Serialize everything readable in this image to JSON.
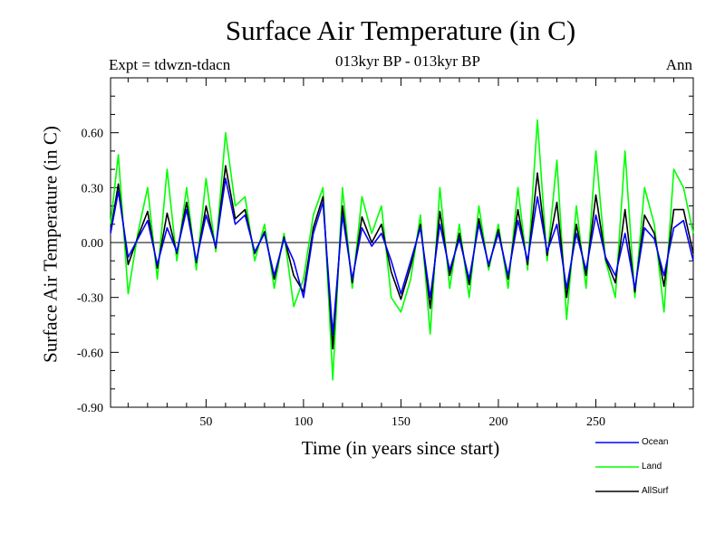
{
  "chart_data": {
    "type": "line",
    "title": "Surface Air Temperature (in C)",
    "subtitle": "013kyr BP - 013kyr BP",
    "experiment_label": "Expt = tdwzn-tdacn",
    "season_label": "Ann",
    "xlabel": "Time (in years since start)",
    "ylabel": "Surface Air Temperature (in C)",
    "xlim": [
      1,
      300
    ],
    "ylim": [
      -0.9,
      0.9
    ],
    "xticks": [
      50,
      100,
      150,
      200,
      250
    ],
    "xtick_labels": [
      "50",
      "100",
      "150",
      "200",
      "250"
    ],
    "yticks": [
      0.6,
      0.3,
      0.0,
      -0.3,
      -0.6,
      -0.9
    ],
    "ytick_labels": [
      "0.60",
      "0.30",
      "0.00",
      "-0.30",
      "-0.60",
      "-0.90"
    ],
    "grid": false,
    "zero_line": true,
    "legend_position": "bottom-right, below plot",
    "series": [
      {
        "name": "Ocean",
        "color": "#0000ff",
        "x": [
          1,
          5,
          10,
          15,
          20,
          25,
          30,
          35,
          40,
          45,
          50,
          55,
          60,
          65,
          70,
          75,
          80,
          85,
          90,
          95,
          100,
          105,
          110,
          115,
          120,
          125,
          130,
          135,
          140,
          145,
          150,
          155,
          160,
          165,
          170,
          175,
          180,
          185,
          190,
          195,
          200,
          205,
          210,
          215,
          220,
          225,
          230,
          235,
          240,
          245,
          250,
          255,
          260,
          265,
          270,
          275,
          280,
          285,
          290,
          295,
          300
        ],
        "values": [
          0.05,
          0.28,
          -0.08,
          0.02,
          0.12,
          -0.12,
          0.08,
          -0.05,
          0.18,
          -0.1,
          0.15,
          -0.02,
          0.35,
          0.1,
          0.15,
          -0.05,
          0.05,
          -0.18,
          0.02,
          -0.1,
          -0.3,
          0.05,
          0.22,
          -0.5,
          0.15,
          -0.2,
          0.08,
          -0.02,
          0.05,
          -0.1,
          -0.28,
          -0.1,
          0.08,
          -0.3,
          0.1,
          -0.15,
          0.02,
          -0.2,
          0.1,
          -0.12,
          0.05,
          -0.18,
          0.12,
          -0.1,
          0.25,
          -0.05,
          0.1,
          -0.25,
          0.05,
          -0.15,
          0.15,
          -0.08,
          -0.18,
          0.05,
          -0.25,
          0.08,
          0.02,
          -0.18,
          0.08,
          0.12,
          -0.1
        ]
      },
      {
        "name": "Land",
        "color": "#00ff00",
        "x": [
          1,
          5,
          10,
          15,
          20,
          25,
          30,
          35,
          40,
          45,
          50,
          55,
          60,
          65,
          70,
          75,
          80,
          85,
          90,
          95,
          100,
          105,
          110,
          115,
          120,
          125,
          130,
          135,
          140,
          145,
          150,
          155,
          160,
          165,
          170,
          175,
          180,
          185,
          190,
          195,
          200,
          205,
          210,
          215,
          220,
          225,
          230,
          235,
          240,
          245,
          250,
          255,
          260,
          265,
          270,
          275,
          280,
          285,
          290,
          295,
          300
        ],
        "values": [
          0.1,
          0.48,
          -0.28,
          0.05,
          0.3,
          -0.2,
          0.4,
          -0.1,
          0.3,
          -0.15,
          0.35,
          -0.05,
          0.6,
          0.2,
          0.25,
          -0.1,
          0.1,
          -0.25,
          0.05,
          -0.35,
          -0.2,
          0.15,
          0.3,
          -0.75,
          0.3,
          -0.25,
          0.25,
          0.05,
          0.2,
          -0.3,
          -0.38,
          -0.2,
          0.15,
          -0.5,
          0.3,
          -0.25,
          0.1,
          -0.3,
          0.2,
          -0.15,
          0.1,
          -0.25,
          0.3,
          -0.15,
          0.67,
          -0.1,
          0.45,
          -0.42,
          0.2,
          -0.25,
          0.5,
          -0.1,
          -0.3,
          0.5,
          -0.3,
          0.3,
          0.1,
          -0.38,
          0.4,
          0.3,
          0.05
        ]
      },
      {
        "name": "AllSurf",
        "color": "#000000",
        "x": [
          1,
          5,
          10,
          15,
          20,
          25,
          30,
          35,
          40,
          45,
          50,
          55,
          60,
          65,
          70,
          75,
          80,
          85,
          90,
          95,
          100,
          105,
          110,
          115,
          120,
          125,
          130,
          135,
          140,
          145,
          150,
          155,
          160,
          165,
          170,
          175,
          180,
          185,
          190,
          195,
          200,
          205,
          210,
          215,
          220,
          225,
          230,
          235,
          240,
          245,
          250,
          255,
          260,
          265,
          270,
          275,
          280,
          285,
          290,
          295,
          300
        ],
        "values": [
          0.06,
          0.32,
          -0.12,
          0.03,
          0.17,
          -0.14,
          0.16,
          -0.06,
          0.22,
          -0.11,
          0.2,
          -0.03,
          0.42,
          0.13,
          0.18,
          -0.06,
          0.06,
          -0.2,
          0.03,
          -0.18,
          -0.27,
          0.08,
          0.25,
          -0.58,
          0.2,
          -0.22,
          0.14,
          0.0,
          0.1,
          -0.16,
          -0.31,
          -0.13,
          0.1,
          -0.36,
          0.17,
          -0.18,
          0.05,
          -0.23,
          0.13,
          -0.13,
          0.07,
          -0.2,
          0.18,
          -0.12,
          0.38,
          -0.07,
          0.22,
          -0.3,
          0.1,
          -0.18,
          0.26,
          -0.09,
          -0.22,
          0.18,
          -0.27,
          0.15,
          0.05,
          -0.24,
          0.18,
          0.18,
          -0.06
        ]
      }
    ]
  }
}
